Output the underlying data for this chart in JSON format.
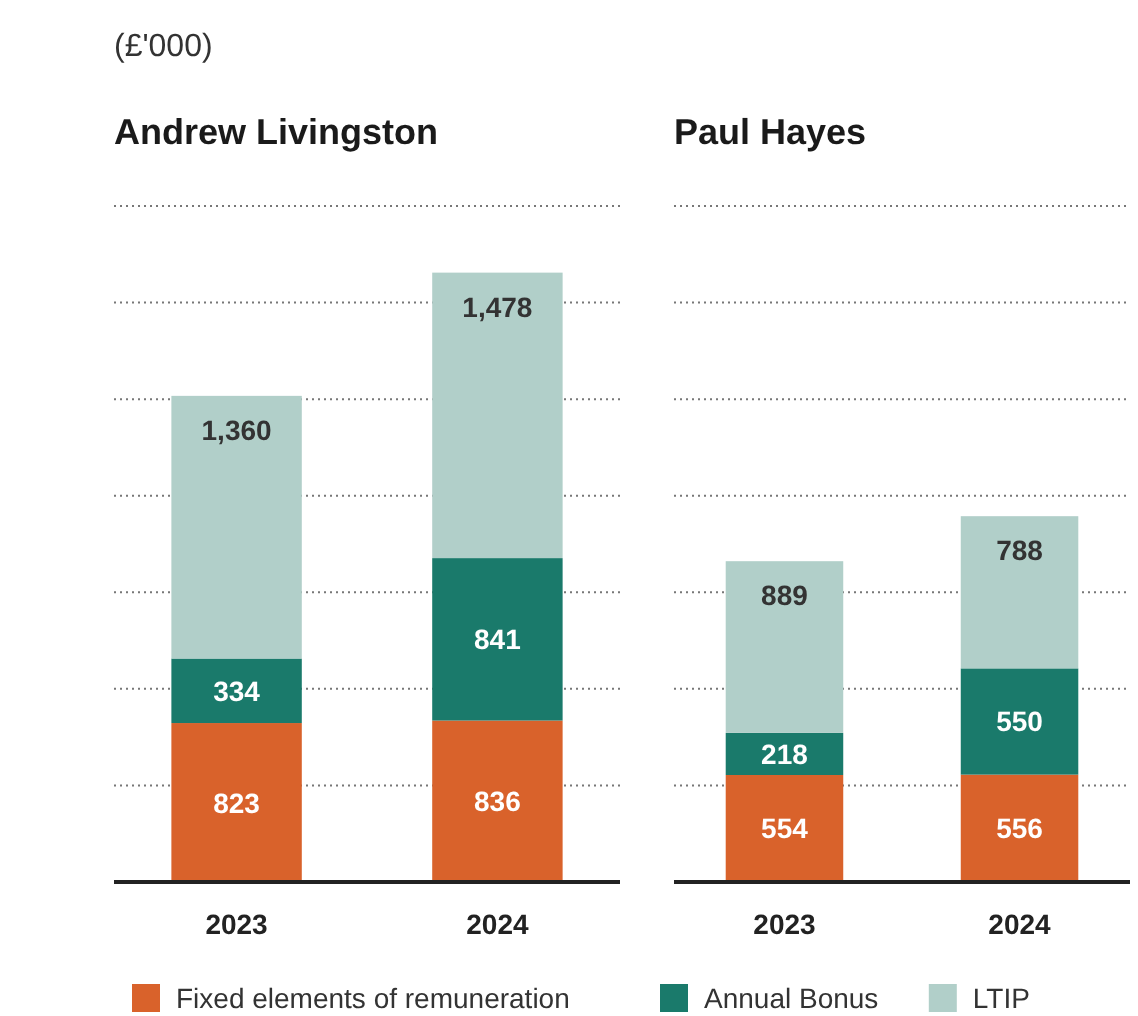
{
  "chart_data": [
    {
      "type": "bar",
      "title": "Andrew Livingston",
      "subtitle": "(£'000)",
      "categories": [
        "2023",
        "2024"
      ],
      "stacked": true,
      "grid": "y",
      "tick_labels": "x",
      "legend": "bottom",
      "ylim": [
        0,
        3500
      ],
      "yticks": [
        {
          "value": 0,
          "label": null
        },
        {
          "value": 500,
          "label": null
        },
        {
          "value": 1000,
          "label": null
        },
        {
          "value": 1500,
          "label": null
        },
        {
          "value": 2000,
          "label": null
        },
        {
          "value": 2500,
          "label": null
        },
        {
          "value": 3000,
          "label": null
        },
        {
          "value": 3500,
          "label": null
        }
      ],
      "series": [
        {
          "name": "Fixed elements of remuneration",
          "color": "#d9622b",
          "values": [
            823,
            836
          ],
          "value_labels": [
            "823",
            "836"
          ]
        },
        {
          "name": "Annual Bonus",
          "color": "#1a7a6b",
          "values": [
            334,
            841
          ],
          "value_labels": [
            "334",
            "841"
          ]
        },
        {
          "name": "LTIP",
          "color": "#b1cfc9",
          "values": [
            1360,
            1478
          ],
          "value_labels": [
            "1,360",
            "1,478"
          ]
        }
      ]
    },
    {
      "type": "bar",
      "title": "Paul Hayes",
      "categories": [
        "2023",
        "2024"
      ],
      "stacked": true,
      "grid": "y",
      "tick_labels": "x",
      "ylim": [
        0,
        3500
      ],
      "yticks": [
        {
          "value": 0,
          "label": null
        },
        {
          "value": 500,
          "label": null
        },
        {
          "value": 1000,
          "label": null
        },
        {
          "value": 1500,
          "label": null
        },
        {
          "value": 2000,
          "label": null
        },
        {
          "value": 2500,
          "label": null
        },
        {
          "value": 3000,
          "label": null
        },
        {
          "value": 3500,
          "label": null
        }
      ],
      "series": [
        {
          "color": "#d9622b",
          "values": [
            554,
            556
          ],
          "value_labels": [
            "554",
            "556"
          ]
        },
        {
          "color": "#1a7a6b",
          "values": [
            218,
            550
          ],
          "value_labels": [
            "218",
            "550"
          ]
        },
        {
          "color": "#b1cfc9",
          "values": [
            889,
            788
          ],
          "value_labels": [
            "889",
            "788"
          ]
        }
      ]
    }
  ]
}
